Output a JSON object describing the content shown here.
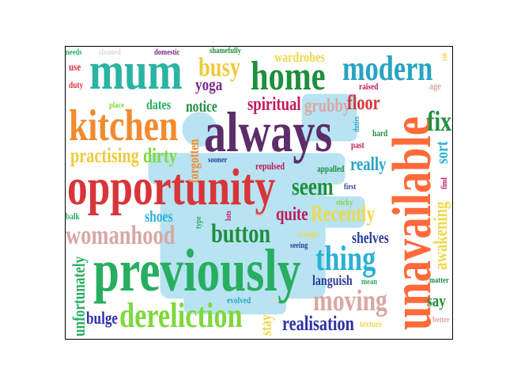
{
  "cloud": {
    "silhouette_color": "#b7e3f2",
    "words": {
      "mum": {
        "text": "mum",
        "color": "#2bb3a3"
      },
      "always": {
        "text": "always",
        "color": "#5d2d6a"
      },
      "unavailable": {
        "text": "unavailable",
        "color": "#ff6a3a"
      },
      "opportunity": {
        "text": "opportunity",
        "color": "#d8353a"
      },
      "previously": {
        "text": "previously",
        "color": "#27ae60"
      },
      "kitchen": {
        "text": "kitchen",
        "color": "#f28a2e"
      },
      "home": {
        "text": "home",
        "color": "#1e8f3d"
      },
      "modern": {
        "text": "modern",
        "color": "#26a5c2"
      },
      "dereliction": {
        "text": "dereliction",
        "color": "#7ed93b"
      },
      "womanhood": {
        "text": "womanhood",
        "color": "#d9a7a3"
      },
      "thing": {
        "text": "thing",
        "color": "#2bb0d6"
      },
      "moving": {
        "text": "moving",
        "color": "#d9a7a3"
      },
      "fix": {
        "text": "fix",
        "color": "#1e8f3d"
      },
      "busy": {
        "text": "busy",
        "color": "#f0c93a"
      },
      "button": {
        "text": "button",
        "color": "#1e8f3d"
      },
      "seem": {
        "text": "seem",
        "color": "#1e8f3d"
      },
      "practising": {
        "text": "practising",
        "color": "#f0c93a"
      },
      "dirty": {
        "text": "dirty",
        "color": "#7ed93b"
      },
      "spiritual": {
        "text": "spiritual",
        "color": "#c2185b"
      },
      "grubby": {
        "text": "grubby",
        "color": "#d9a7a3"
      },
      "floor": {
        "text": "floor",
        "color": "#d8353a"
      },
      "realisation": {
        "text": "realisation",
        "color": "#3030a8"
      },
      "recently": {
        "text": "Recently",
        "color": "#f0d84a"
      },
      "really": {
        "text": "really",
        "color": "#26a5c2"
      },
      "awakening": {
        "text": "awakening",
        "color": "#f0d84a"
      },
      "unfortunately": {
        "text": "unfortunately",
        "color": "#27ae60"
      },
      "bulge": {
        "text": "bulge",
        "color": "#3030a8"
      },
      "quite": {
        "text": "quite",
        "color": "#c2185b"
      },
      "shoes": {
        "text": "shoes",
        "color": "#2bb0d6"
      },
      "languish": {
        "text": "languish",
        "color": "#2a3d9a"
      },
      "shelves": {
        "text": "shelves",
        "color": "#2a3d9a"
      },
      "say": {
        "text": "say",
        "color": "#1e8f3d"
      },
      "sort": {
        "text": "sort",
        "color": "#2bb0d6"
      },
      "stay": {
        "text": "stay",
        "color": "#f0d84a"
      },
      "wardrobes": {
        "text": "wardrobes",
        "color": "#f0d84a"
      },
      "notice": {
        "text": "notice",
        "color": "#1e8f3d"
      },
      "dates": {
        "text": "dates",
        "color": "#27ae60"
      },
      "yoga": {
        "text": "yoga",
        "color": "#7b2c8a"
      },
      "forgotten": {
        "text": "forgotten",
        "color": "#f28a2e"
      },
      "use": {
        "text": "use",
        "color": "#d8353a"
      },
      "duty": {
        "text": "duty",
        "color": "#d8353a"
      },
      "place": {
        "text": "place",
        "color": "#7ed93b"
      },
      "needs": {
        "text": "needs",
        "color": "#27ae60"
      },
      "cleaned": {
        "text": "cleaned",
        "color": "#d9d9d9"
      },
      "domestic": {
        "text": "domestic",
        "color": "#7b2c8a"
      },
      "shamefully": {
        "text": "shamefully",
        "color": "#1e8f3d"
      },
      "raised": {
        "text": "raised",
        "color": "#c2185b"
      },
      "age": {
        "text": "age",
        "color": "#d9a7a3"
      },
      "duties": {
        "text": "duties",
        "color": "#26a5c2"
      },
      "hard": {
        "text": "hard",
        "color": "#1e8f3d"
      },
      "past": {
        "text": "past",
        "color": "#c2185b"
      },
      "sooner": {
        "text": "sooner",
        "color": "#2a3d9a"
      },
      "repulsed": {
        "text": "repulsed",
        "color": "#c2185b"
      },
      "appalled": {
        "text": "appalled",
        "color": "#1e8f3d"
      },
      "first": {
        "text": "first",
        "color": "#2a3d9a"
      },
      "sticky": {
        "text": "sticky",
        "color": "#7ed93b"
      },
      "find": {
        "text": "find",
        "color": "#c2185b"
      },
      "balk": {
        "text": "balk",
        "color": "#27ae60"
      },
      "type": {
        "text": "type",
        "color": "#27ae60"
      },
      "lots": {
        "text": "lots",
        "color": "#c2185b"
      },
      "google": {
        "text": "Google",
        "color": "#f0d84a"
      },
      "seeing": {
        "text": "seeing",
        "color": "#2a3d9a"
      },
      "mean": {
        "text": "mean",
        "color": "#27ae60"
      },
      "matter": {
        "text": "matter",
        "color": "#1e8f3d"
      },
      "evolved": {
        "text": "evolved",
        "color": "#26a5c2"
      },
      "texture": {
        "text": "texture",
        "color": "#f0d84a"
      },
      "better": {
        "text": "better",
        "color": "#d9a7a3"
      },
      "cut": {
        "text": "cut",
        "color": "#f0d84a"
      },
      "fits": {
        "text": "fits",
        "color": "#d9d9d9"
      },
      "vessels": {
        "text": "vessels",
        "color": "#d9d9d9"
      }
    }
  }
}
